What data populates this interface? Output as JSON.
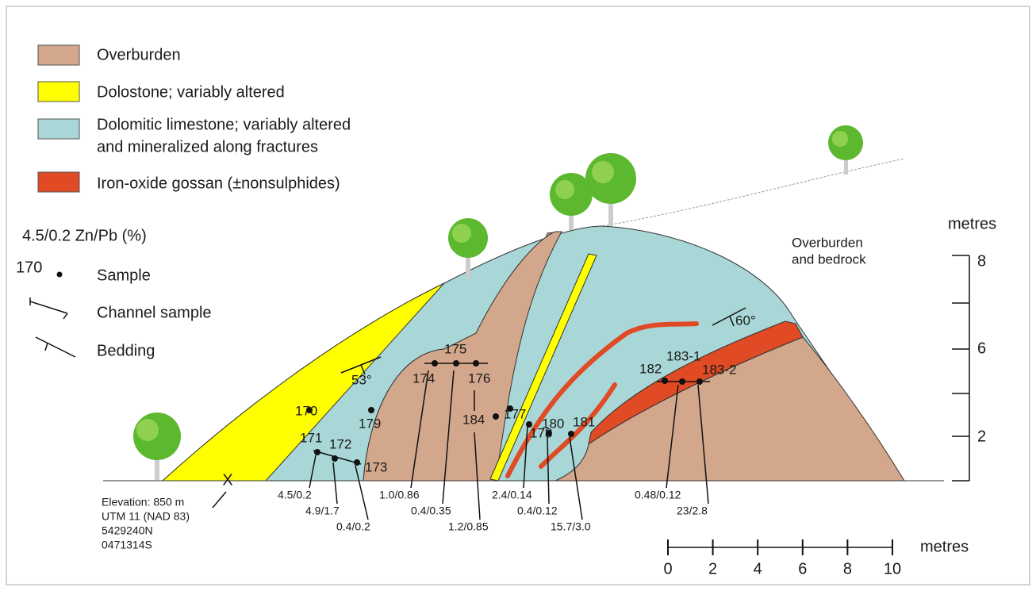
{
  "legend": [
    "Overburden",
    "Dolostone; variably altered",
    "Dolomitic limestone; variably altered",
    "and mineralized along fractures",
    "Iron-oxide gossan (±nonsulphides)"
  ],
  "symbols": {
    "zn_pb": "4.5/0.2 Zn/Pb (%)",
    "sample_example": "170",
    "sample": "Sample",
    "channel": "Channel sample",
    "bedding": "Bedding"
  },
  "annotations": {
    "overburden_bedrock": [
      "Overburden",
      "and bedrock"
    ],
    "dip_left": "53°",
    "dip_right": "60°",
    "site_mark": "X"
  },
  "location": [
    "Elevation: 850 m",
    "UTM 11 (NAD 83)",
    "5429240N",
    "0471314S"
  ],
  "samples": [
    "170",
    "179",
    "171",
    "172",
    "173",
    "175",
    "174",
    "176",
    "184",
    "177",
    "178",
    "180",
    "181",
    "182",
    "183-1",
    "183-2"
  ],
  "assays": [
    "4.5/0.2",
    "4.9/1.7",
    "0.4/0.2",
    "1.0/0.86",
    "0.4/0.35",
    "1.2/0.85",
    "2.4/0.14",
    "0.4/0.12",
    "15.7/3.0",
    "0.48/0.12",
    "23/2.8"
  ],
  "vertical_scale": {
    "unit": "metres",
    "ticks": [
      "8",
      "6",
      "2"
    ]
  },
  "horizontal_scale": {
    "unit": "metres",
    "ticks": [
      "0",
      "2",
      "4",
      "6",
      "8",
      "10"
    ]
  }
}
